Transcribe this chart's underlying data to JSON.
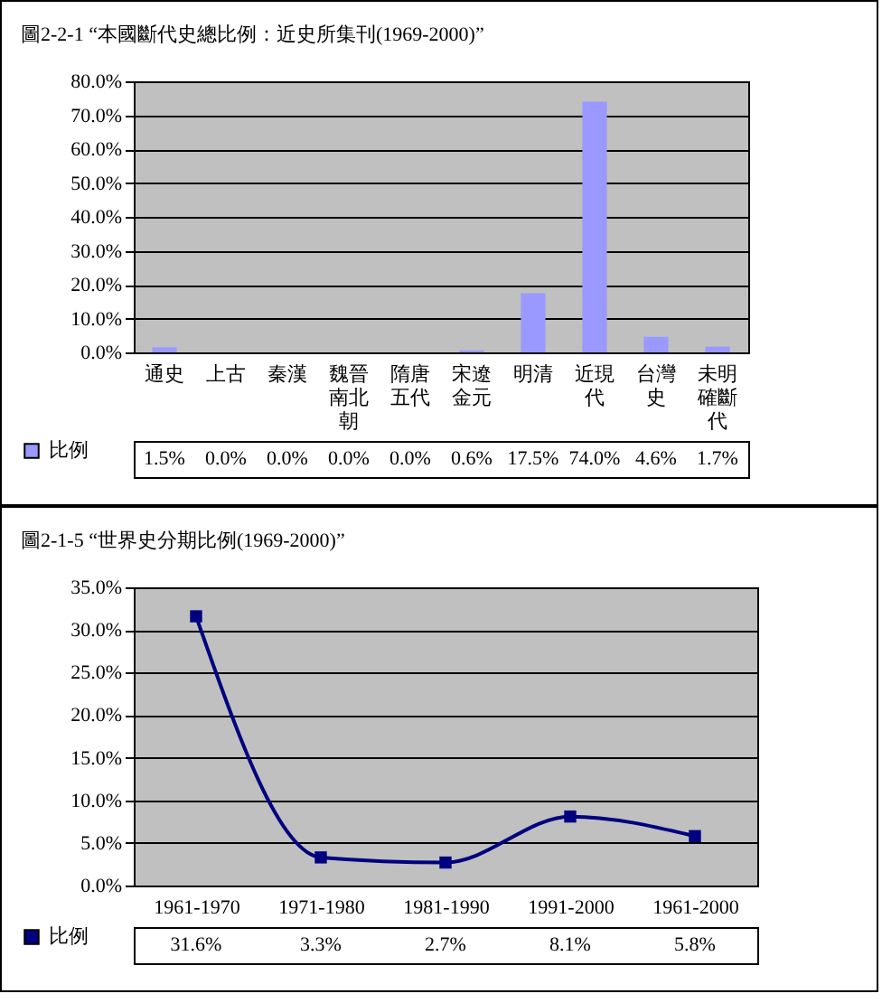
{
  "chart_data": [
    {
      "type": "bar",
      "title": "圖2-2-1  “本國斷代史總比例：近史所集刊(1969-2000)”",
      "categories": [
        "通史",
        "上古",
        "秦漢",
        "魏晉南北朝",
        "隋唐五代",
        "宋遼金元",
        "明清",
        "近現代",
        "台灣史",
        "未明確斷代"
      ],
      "series": [
        {
          "name": "比例",
          "color": "#9999ff",
          "values": [
            1.5,
            0.0,
            0.0,
            0.0,
            0.0,
            0.6,
            17.5,
            74.0,
            4.6,
            1.7
          ],
          "value_labels": [
            "1.5%",
            "0.0%",
            "0.0%",
            "0.0%",
            "0.0%",
            "0.6%",
            "17.5%",
            "74.0%",
            "4.6%",
            "1.7%"
          ]
        }
      ],
      "ylim": [
        0,
        80
      ],
      "yticks": [
        {
          "value": 0,
          "label": "0.0%"
        },
        {
          "value": 10,
          "label": "10.0%"
        },
        {
          "value": 20,
          "label": "20.0%"
        },
        {
          "value": 30,
          "label": "30.0%"
        },
        {
          "value": 40,
          "label": "40.0%"
        },
        {
          "value": 50,
          "label": "50.0%"
        },
        {
          "value": 60,
          "label": "60.0%"
        },
        {
          "value": 70,
          "label": "70.0%"
        },
        {
          "value": 80,
          "label": "80.0%"
        }
      ],
      "grid": "y",
      "legend": "bottom left"
    },
    {
      "type": "line",
      "title": "圖2-1-5 “世界史分期比例(1969-2000)”",
      "categories": [
        "1961-1970",
        "1971-1980",
        "1981-1990",
        "1991-2000",
        "1961-2000"
      ],
      "series": [
        {
          "name": "比例",
          "color": "#000080",
          "values": [
            31.6,
            3.3,
            2.7,
            8.1,
            5.8
          ],
          "value_labels": [
            "31.6%",
            "3.3%",
            "2.7%",
            "8.1%",
            "5.8%"
          ]
        }
      ],
      "ylim": [
        0,
        35
      ],
      "yticks": [
        {
          "value": 0,
          "label": "0.0%"
        },
        {
          "value": 5,
          "label": "5.0%"
        },
        {
          "value": 10,
          "label": "10.0%"
        },
        {
          "value": 15,
          "label": "15.0%"
        },
        {
          "value": 20,
          "label": "20.0%"
        },
        {
          "value": 25,
          "label": "25.0%"
        },
        {
          "value": 30,
          "label": "30.0%"
        },
        {
          "value": 35,
          "label": "35.0%"
        }
      ],
      "grid": "y",
      "legend": "bottom left",
      "marker": "square",
      "line_style": "solid"
    }
  ]
}
